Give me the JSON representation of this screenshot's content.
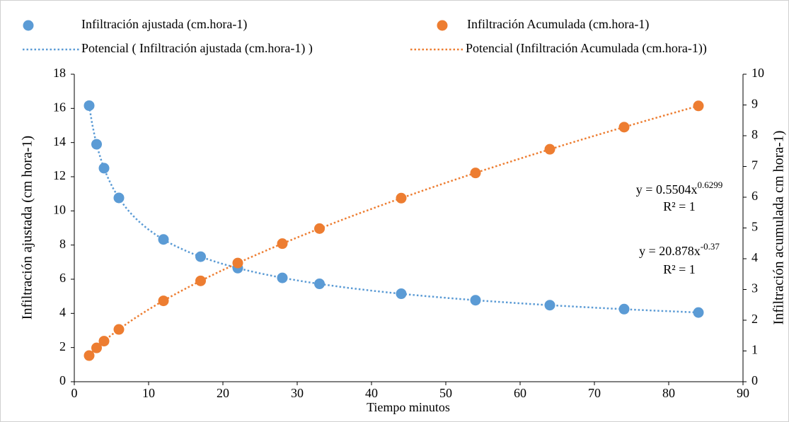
{
  "chart_data": {
    "type": "scatter",
    "xlabel": "Tiempo minutos",
    "ylabel": "Infiltración ajustada (cm hora-1)",
    "y2label": "Infiltración acumulada cm hora-1)",
    "x": [
      2,
      3,
      4,
      6,
      12,
      17,
      22,
      28,
      33,
      44,
      54,
      64,
      74,
      84
    ],
    "series": [
      {
        "name": "Infiltración ajustada (cm.hora-1)",
        "color": "#5b9bd5",
        "axis": "y",
        "values": [
          16.16,
          13.9,
          12.5,
          10.76,
          8.33,
          7.32,
          6.65,
          6.08,
          5.73,
          5.15,
          4.77,
          4.48,
          4.25,
          4.05
        ]
      },
      {
        "name": "Infiltración Acumulada (cm.hora-1)",
        "color": "#ed7d31",
        "axis": "y2",
        "values": [
          0.85,
          1.1,
          1.32,
          1.7,
          2.63,
          3.28,
          3.86,
          4.49,
          4.98,
          5.97,
          6.79,
          7.56,
          8.28,
          8.97
        ]
      }
    ],
    "trendlines": [
      {
        "name": "Potencial ( Infiltración ajustada (cm.hora-1) )",
        "color": "#5b9bd5",
        "axis": "y",
        "coefficient": 20.878,
        "exponent": -0.37,
        "equation": "y = 20.878x",
        "exponent_label": "-0.37",
        "r2": "R² = 1"
      },
      {
        "name": "Potencial (Infiltración Acumulada (cm.hora-1))",
        "color": "#ed7d31",
        "axis": "y2",
        "coefficient": 0.5504,
        "exponent": 0.6299,
        "equation": "y = 0.5504x",
        "exponent_label": "0.6299",
        "r2": "R² = 1"
      }
    ],
    "xlim": [
      0,
      90
    ],
    "xticks": [
      0,
      10,
      20,
      30,
      40,
      50,
      60,
      70,
      80,
      90
    ],
    "ylim": [
      0,
      18
    ],
    "yticks": [
      0,
      2,
      4,
      6,
      8,
      10,
      12,
      14,
      16,
      18
    ],
    "y2lim": [
      0,
      10
    ],
    "y2ticks": [
      0,
      1,
      2,
      3,
      4,
      5,
      6,
      7,
      8,
      9,
      10
    ],
    "grid": false,
    "legend": "top"
  }
}
